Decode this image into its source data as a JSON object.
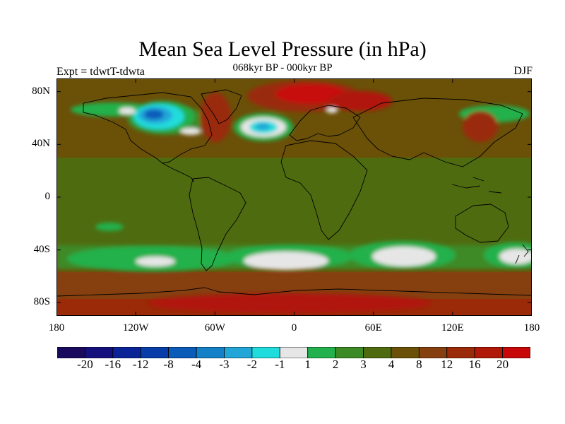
{
  "title": "Mean Sea Level Pressure (in hPa)",
  "subtitle": "068kyr BP - 000kyr BP",
  "experiment_label": "Expt = tdwtT-tdwta",
  "season_label": "DJF",
  "map": {
    "lat_range": [
      -90,
      90
    ],
    "lon_range": [
      -180,
      180
    ],
    "lat_ticks": [
      {
        "value": 80,
        "label": "80N"
      },
      {
        "value": 40,
        "label": "40N"
      },
      {
        "value": 0,
        "label": "0"
      },
      {
        "value": -40,
        "label": "40S"
      },
      {
        "value": -80,
        "label": "80S"
      }
    ],
    "lon_ticks": [
      {
        "value": -180,
        "label": "180"
      },
      {
        "value": -120,
        "label": "120W"
      },
      {
        "value": -60,
        "label": "60W"
      },
      {
        "value": 0,
        "label": "0"
      },
      {
        "value": 60,
        "label": "60E"
      },
      {
        "value": 120,
        "label": "120E"
      },
      {
        "value": 180,
        "label": "180"
      }
    ]
  },
  "colorbar": {
    "colors": [
      "#1a0a5e",
      "#14107e",
      "#0a2396",
      "#083ca8",
      "#0b5bb9",
      "#1480c8",
      "#22a6d8",
      "#20dcdc",
      "#e6e6e6",
      "#22b14c",
      "#3c8a26",
      "#4f6b10",
      "#6b5008",
      "#864010",
      "#9a2a08",
      "#b01808",
      "#c80808"
    ],
    "labels": [
      "-20",
      "-16",
      "-12",
      "-8",
      "-4",
      "-3",
      "-2",
      "-1",
      "1",
      "2",
      "3",
      "4",
      "8",
      "12",
      "16",
      "20"
    ]
  }
}
